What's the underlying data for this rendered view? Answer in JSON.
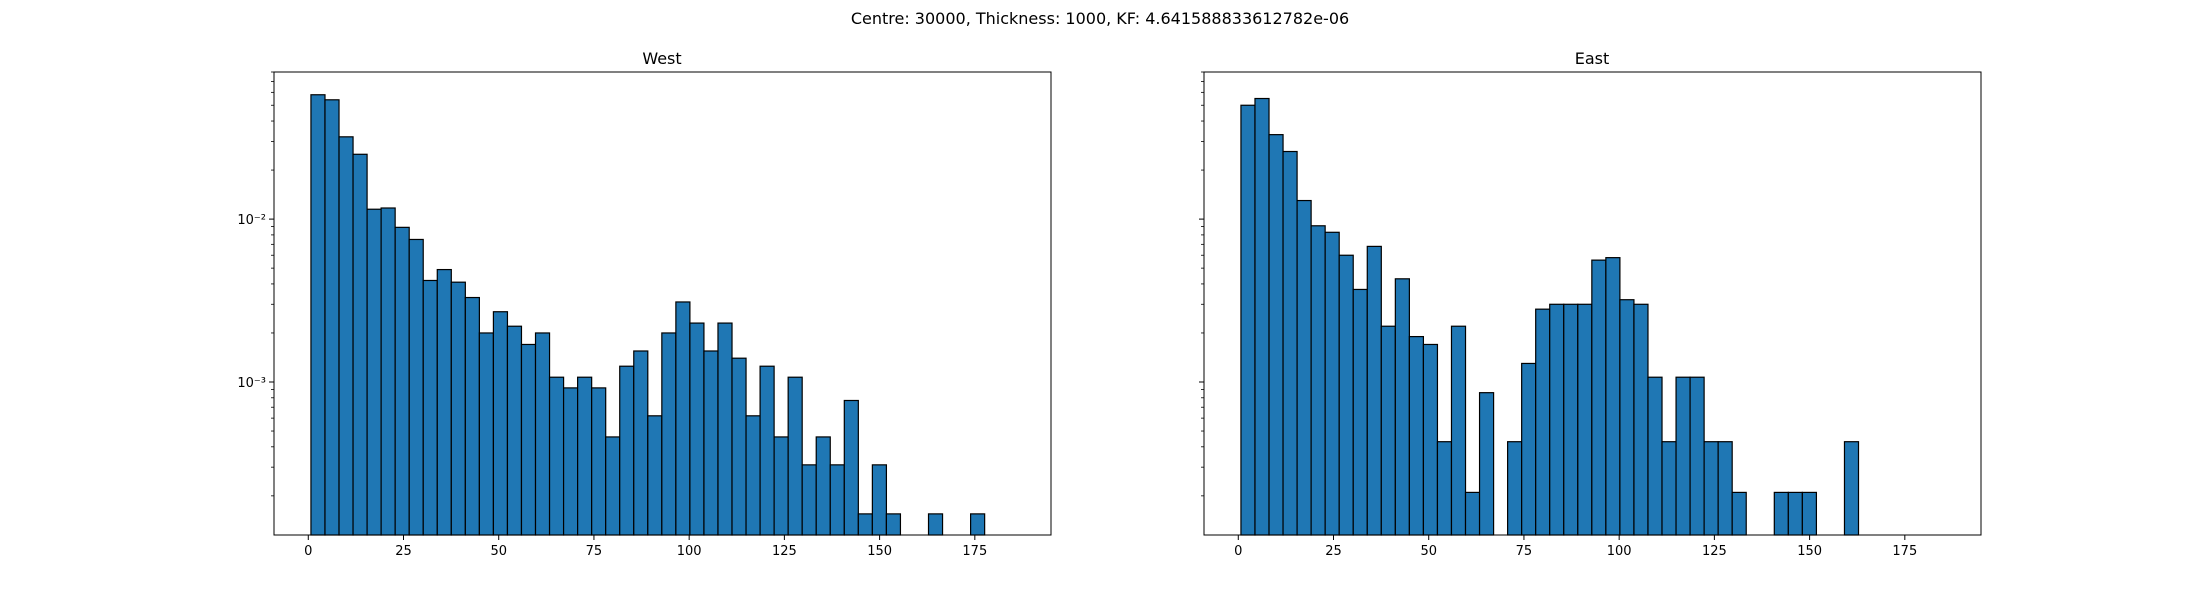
{
  "figure": {
    "suptitle": "Centre: 30000, Thickness: 1000, KF: 4.641588833612782e-06"
  },
  "colors": {
    "bar_fill": "#1f77b4",
    "bar_edge": "#000000",
    "axis": "#000000"
  },
  "chart_data": [
    {
      "type": "bar",
      "title": "West",
      "xlabel": "",
      "ylabel": "",
      "yscale": "log",
      "xlim": [
        -9,
        195
      ],
      "ylim": [
        0.000115,
        0.08
      ],
      "xticks": [
        0,
        25,
        50,
        75,
        100,
        125,
        150,
        175
      ],
      "yticks": [
        {
          "value": 0.001,
          "label": "10⁻³"
        },
        {
          "value": 0.01,
          "label": "10⁻²"
        }
      ],
      "grid": false,
      "bin_start": 0.7,
      "bin_width": 3.685,
      "values": [
        0.058,
        0.054,
        0.032,
        0.025,
        0.0115,
        0.0117,
        0.0089,
        0.0075,
        0.0042,
        0.0049,
        0.0041,
        0.0033,
        0.002,
        0.0027,
        0.0022,
        0.0017,
        0.002,
        0.00107,
        0.00092,
        0.00107,
        0.00092,
        0.00046,
        0.00125,
        0.00155,
        0.00062,
        0.002,
        0.0031,
        0.0023,
        0.00155,
        0.0023,
        0.0014,
        0.00062,
        0.00125,
        0.00046,
        0.00107,
        0.00031,
        0.00046,
        0.00031,
        0.00077,
        0.000155,
        0.00031,
        0.000155,
        0,
        0,
        0.000155,
        0,
        0,
        0.000155
      ]
    },
    {
      "type": "bar",
      "title": "East",
      "xlabel": "",
      "ylabel": "",
      "yscale": "log",
      "xlim": [
        -9,
        195
      ],
      "ylim": [
        0.000115,
        0.08
      ],
      "xticks": [
        0,
        25,
        50,
        75,
        100,
        125,
        150,
        175
      ],
      "yticks": [],
      "grid": false,
      "bin_start": 0.7,
      "bin_width": 3.685,
      "values": [
        0.05,
        0.055,
        0.033,
        0.026,
        0.013,
        0.0091,
        0.0083,
        0.006,
        0.0037,
        0.0068,
        0.0022,
        0.0043,
        0.0019,
        0.0017,
        0.00043,
        0.0022,
        0.00021,
        0.00086,
        0,
        0.00043,
        0.0013,
        0.0028,
        0.003,
        0.003,
        0.003,
        0.0056,
        0.0058,
        0.0032,
        0.003,
        0.00107,
        0.00043,
        0.00107,
        0.00107,
        0.00043,
        0.00043,
        0.00021,
        0,
        0,
        0.00021,
        0.00021,
        0.00021,
        0,
        0,
        0.00043
      ]
    }
  ]
}
